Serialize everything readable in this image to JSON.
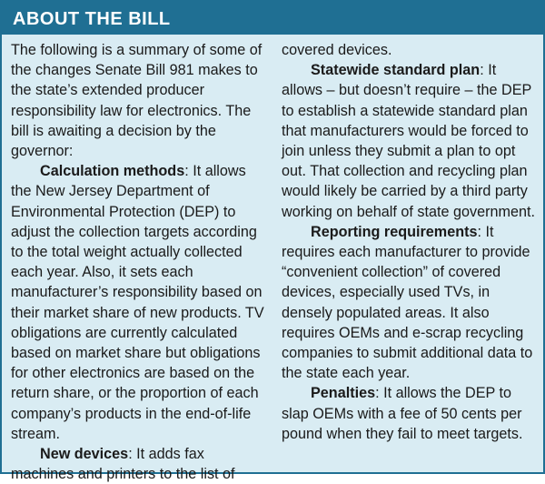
{
  "header": {
    "title": "ABOUT THE BILL"
  },
  "col1": {
    "intro": "The following is a summary of some of the changes Senate Bill 981 makes to the state’s extended producer responsibility law for electronics. The bill is awaiting a decision by the governor:",
    "calc_lead": "Calculation methods",
    "calc_text": ": It allows the New Jersey Department of Environmental Protection (DEP) to adjust the collection targets according to the total weight actually collected each year. Also, it sets each manufacturer’s responsibility based on their market share of new products. TV obligations are currently calculated based on market share but obligations for other electronics are based on the return share, or the proportion of each company’s products in the end-of-life stream.",
    "devices_lead": "New devices",
    "devices_text": ": It adds fax machines and printers to the list of"
  },
  "col2": {
    "devices_cont": "covered devices.",
    "plan_lead": "Statewide standard plan",
    "plan_text": ": It allows – but doesn’t require – the DEP to establish a statewide standard plan that manufacturers would be forced to join unless they submit a plan to opt out. That collection and recycling plan would likely be carried by a third party working on behalf of state government.",
    "reporting_lead": "Reporting requirements",
    "reporting_text": ": It requires each manufacturer to provide “convenient collection” of covered devices, especially used TVs, in densely populated areas. It also requires OEMs and e-scrap recycling companies to submit additional data to the state each year.",
    "penalties_lead": "Penalties",
    "penalties_text": ": It allows the DEP to slap OEMs with a fee of 50 cents per pound when they fail to meet targets."
  }
}
